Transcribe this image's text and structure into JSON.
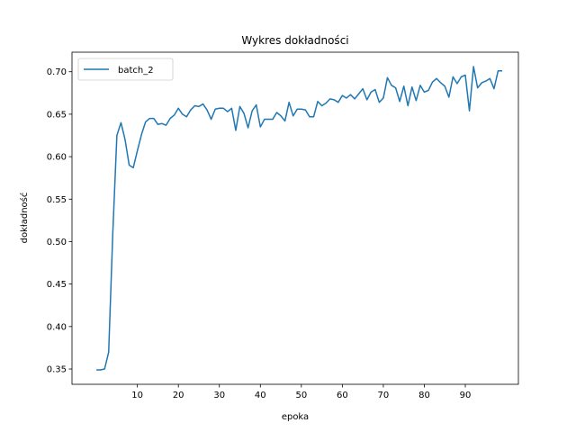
{
  "chart_data": {
    "type": "line",
    "title": "Wykres dokładności",
    "xlabel": "epoka",
    "ylabel": "dokładność",
    "xlim": [
      -5.95,
      102.95
    ],
    "ylim": [
      0.332,
      0.723
    ],
    "xticks": [
      10,
      20,
      30,
      40,
      50,
      60,
      70,
      80,
      90
    ],
    "yticks": [
      0.35,
      0.4,
      0.45,
      0.5,
      0.55,
      0.6,
      0.65,
      0.7
    ],
    "ytick_labels": [
      "0.35",
      "0.40",
      "0.45",
      "0.50",
      "0.55",
      "0.60",
      "0.65",
      "0.70"
    ],
    "grid": false,
    "legend_position": "top-left",
    "line_color": "#1f77b4",
    "series": [
      {
        "name": "batch_2",
        "x": [
          0,
          1,
          2,
          3,
          4,
          5,
          6,
          7,
          8,
          9,
          10,
          11,
          12,
          13,
          14,
          15,
          16,
          17,
          18,
          19,
          20,
          21,
          22,
          23,
          24,
          25,
          26,
          27,
          28,
          29,
          30,
          31,
          32,
          33,
          34,
          35,
          36,
          37,
          38,
          39,
          40,
          41,
          42,
          43,
          44,
          45,
          46,
          47,
          48,
          49,
          50,
          51,
          52,
          53,
          54,
          55,
          56,
          57,
          58,
          59,
          60,
          61,
          62,
          63,
          64,
          65,
          66,
          67,
          68,
          69,
          70,
          71,
          72,
          73,
          74,
          75,
          76,
          77,
          78,
          79,
          80,
          81,
          82,
          83,
          84,
          85,
          86,
          87,
          88,
          89,
          90,
          91,
          92,
          93,
          94,
          95,
          96,
          97,
          98,
          99
        ],
        "values": [
          0.349,
          0.349,
          0.35,
          0.37,
          0.51,
          0.625,
          0.64,
          0.62,
          0.59,
          0.587,
          0.607,
          0.626,
          0.641,
          0.645,
          0.645,
          0.638,
          0.639,
          0.637,
          0.645,
          0.649,
          0.657,
          0.65,
          0.647,
          0.655,
          0.66,
          0.659,
          0.662,
          0.655,
          0.644,
          0.656,
          0.657,
          0.657,
          0.653,
          0.657,
          0.631,
          0.659,
          0.651,
          0.634,
          0.654,
          0.661,
          0.635,
          0.644,
          0.644,
          0.644,
          0.652,
          0.648,
          0.642,
          0.664,
          0.648,
          0.656,
          0.656,
          0.655,
          0.647,
          0.647,
          0.665,
          0.66,
          0.663,
          0.668,
          0.667,
          0.664,
          0.672,
          0.669,
          0.673,
          0.668,
          0.674,
          0.68,
          0.667,
          0.676,
          0.679,
          0.664,
          0.669,
          0.693,
          0.684,
          0.681,
          0.665,
          0.683,
          0.66,
          0.682,
          0.666,
          0.684,
          0.676,
          0.678,
          0.688,
          0.692,
          0.687,
          0.683,
          0.67,
          0.694,
          0.686,
          0.694,
          0.696,
          0.654,
          0.706,
          0.681,
          0.687,
          0.689,
          0.692,
          0.68,
          0.701,
          0.701
        ]
      }
    ]
  }
}
